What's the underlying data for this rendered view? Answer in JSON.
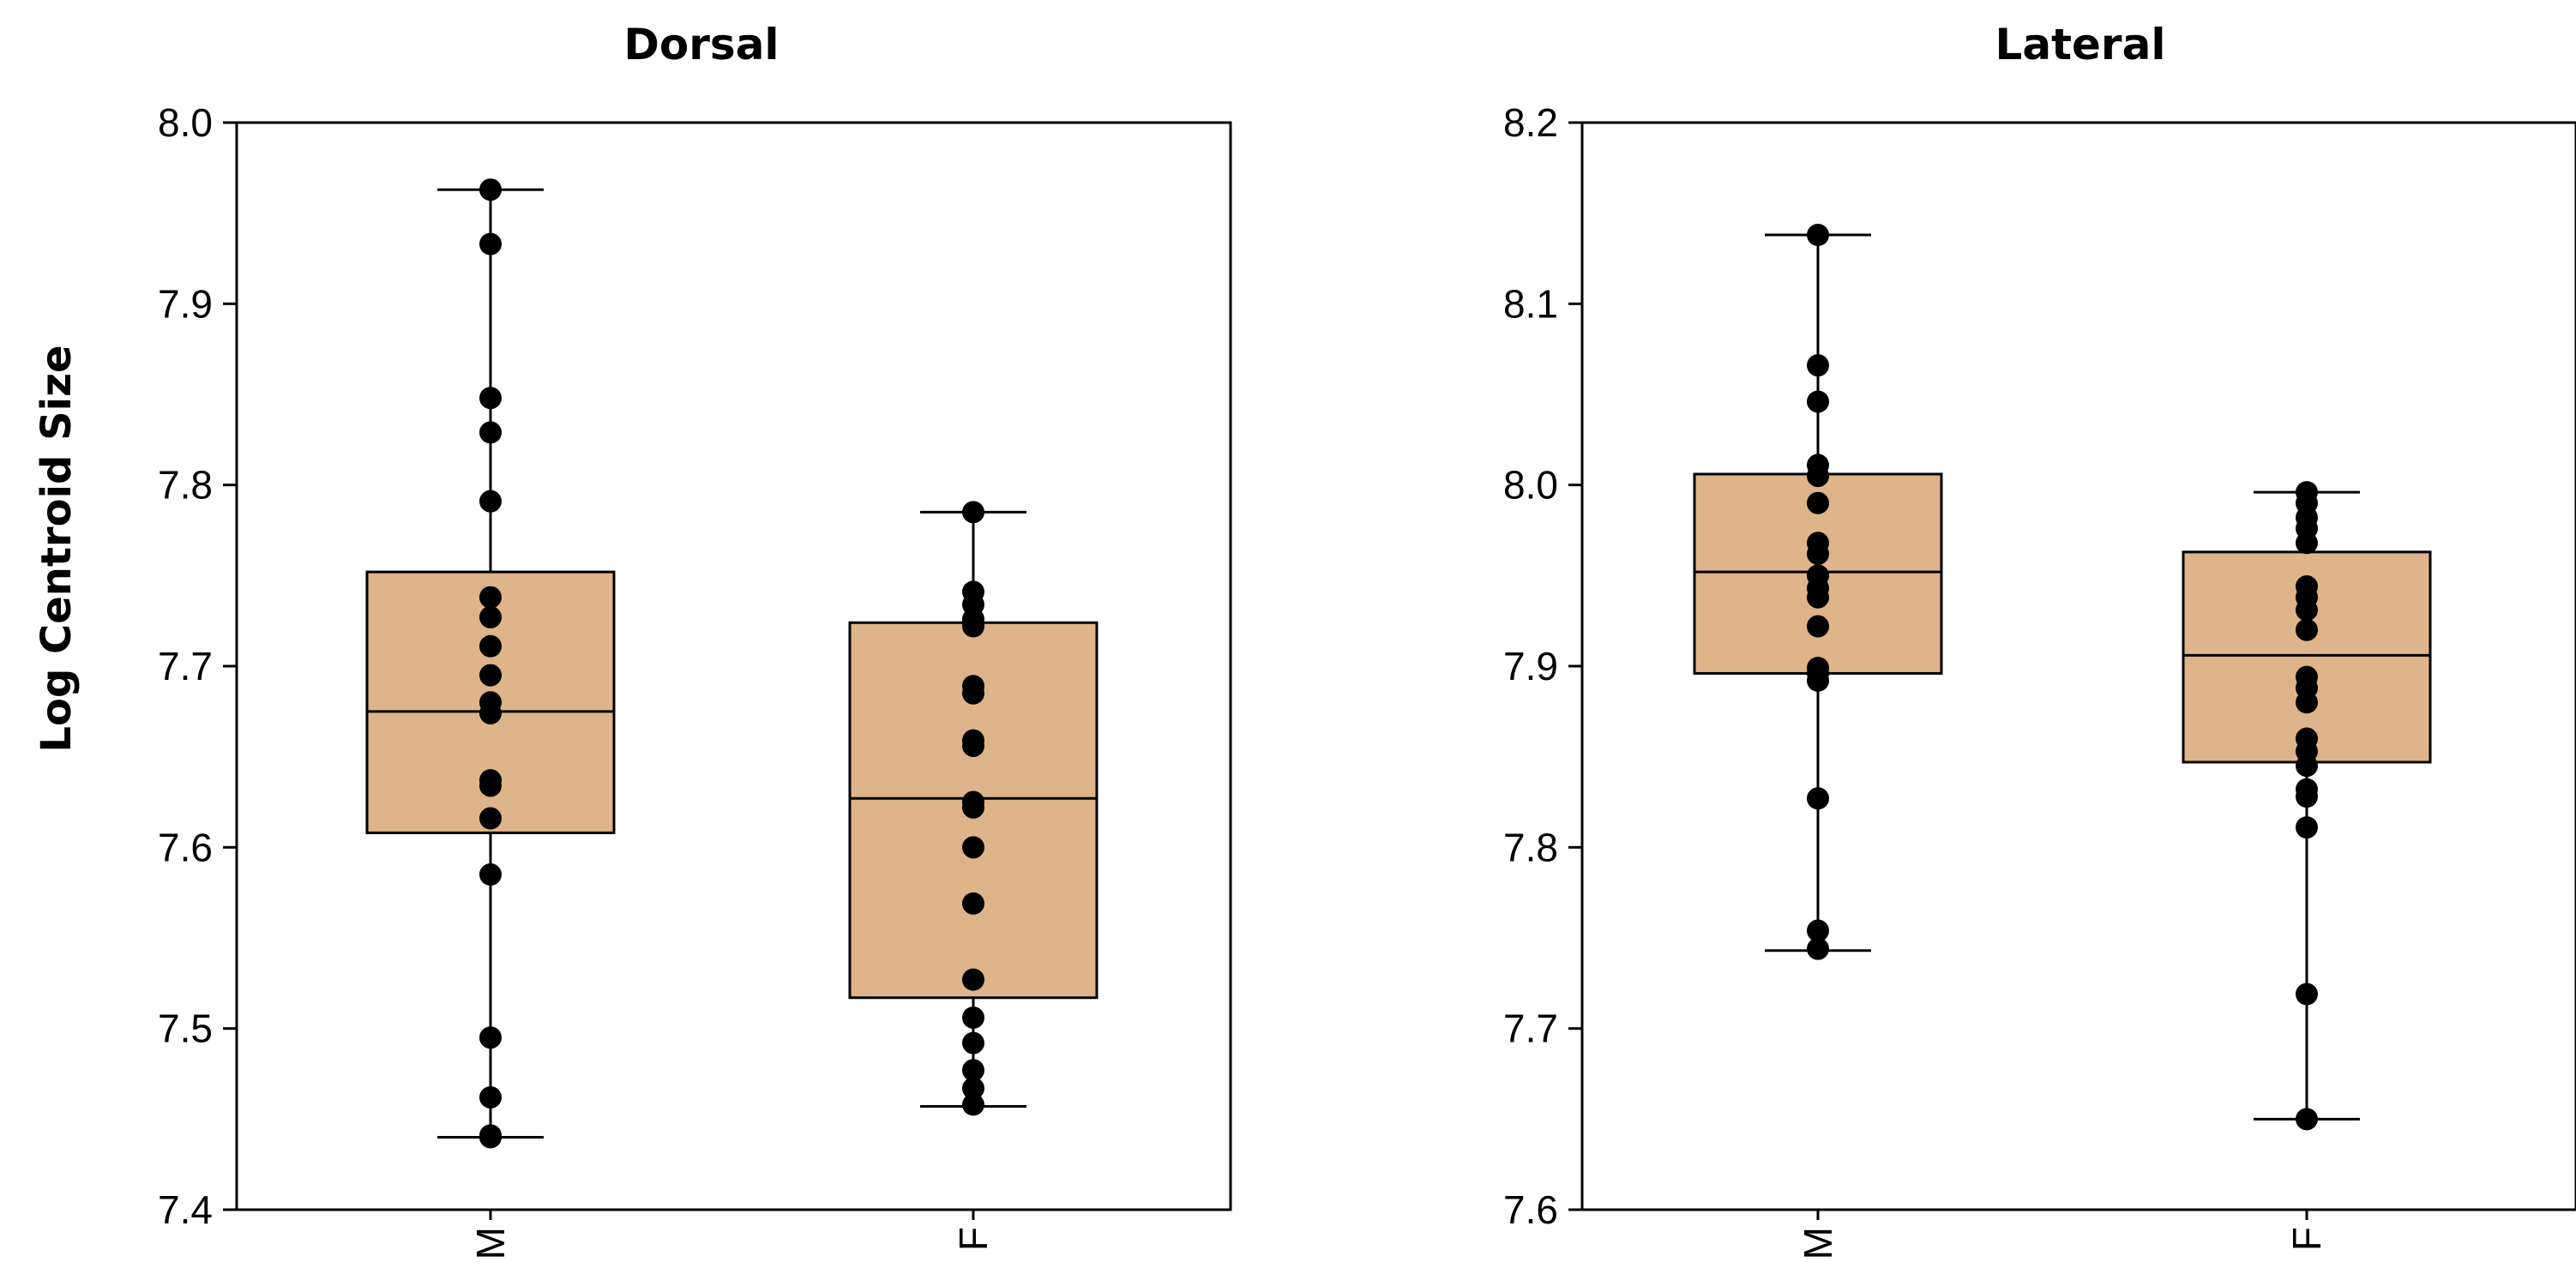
{
  "chart_data": [
    {
      "type": "box",
      "title": "Dorsal",
      "xlabel": "",
      "ylabel": "Log Centroid Size",
      "ylim": [
        7.4,
        8.0
      ],
      "yticks": [
        "7.4",
        "7.5",
        "7.6",
        "7.7",
        "7.8",
        "7.9",
        "8.0"
      ],
      "categories": [
        "M",
        "F"
      ],
      "box_color": "#deb48a",
      "boxes": [
        {
          "category": "M",
          "whisker_low": 7.44,
          "q1": 7.608,
          "median": 7.675,
          "q3": 7.752,
          "whisker_high": 7.963,
          "points": [
            7.963,
            7.933,
            7.848,
            7.829,
            7.791,
            7.738,
            7.727,
            7.711,
            7.695,
            7.68,
            7.674,
            7.637,
            7.634,
            7.616,
            7.585,
            7.495,
            7.462,
            7.441,
            7.44
          ]
        },
        {
          "category": "F",
          "whisker_low": 7.457,
          "q1": 7.517,
          "median": 7.627,
          "q3": 7.724,
          "whisker_high": 7.785,
          "points": [
            7.785,
            7.741,
            7.734,
            7.726,
            7.722,
            7.689,
            7.685,
            7.659,
            7.656,
            7.625,
            7.622,
            7.6,
            7.569,
            7.527,
            7.506,
            7.492,
            7.477,
            7.467,
            7.458
          ]
        }
      ]
    },
    {
      "type": "box",
      "title": "Lateral",
      "xlabel": "",
      "ylabel": "",
      "ylim": [
        7.6,
        8.2
      ],
      "yticks": [
        "7.6",
        "7.7",
        "7.8",
        "7.9",
        "8.0",
        "8.1",
        "8.2"
      ],
      "categories": [
        "M",
        "F"
      ],
      "box_color": "#deb48a",
      "boxes": [
        {
          "category": "M",
          "whisker_low": 7.743,
          "q1": 7.896,
          "median": 7.952,
          "q3": 8.006,
          "whisker_high": 8.138,
          "points": [
            8.138,
            8.066,
            8.046,
            8.011,
            8.005,
            7.99,
            7.968,
            7.962,
            7.95,
            7.943,
            7.938,
            7.922,
            7.899,
            7.896,
            7.892,
            7.827,
            7.754,
            7.744
          ]
        },
        {
          "category": "F",
          "whisker_low": 7.65,
          "q1": 7.847,
          "median": 7.906,
          "q3": 7.963,
          "whisker_high": 7.996,
          "points": [
            7.996,
            7.99,
            7.982,
            7.976,
            7.968,
            7.944,
            7.938,
            7.931,
            7.92,
            7.894,
            7.888,
            7.88,
            7.86,
            7.853,
            7.845,
            7.832,
            7.828,
            7.811,
            7.719,
            7.65
          ]
        }
      ]
    }
  ]
}
